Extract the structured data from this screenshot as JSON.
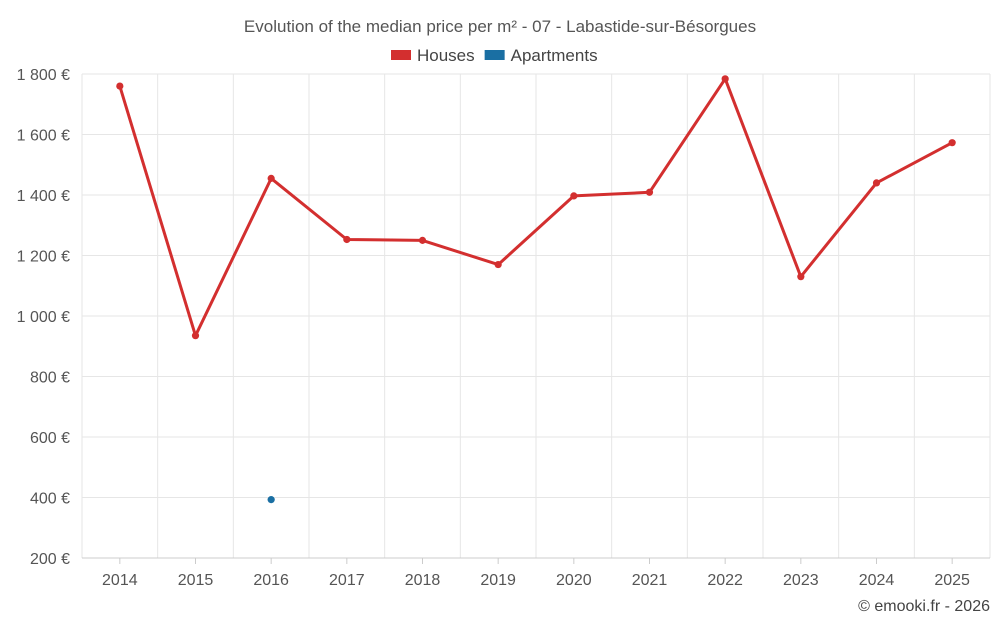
{
  "chart_data": {
    "type": "line",
    "title": "Evolution of the median price per m² - 07 - Labastide-sur-Bésorgues",
    "xlabel": "",
    "ylabel": "",
    "categories": [
      "2014",
      "2015",
      "2016",
      "2017",
      "2018",
      "2019",
      "2020",
      "2021",
      "2022",
      "2023",
      "2024",
      "2025"
    ],
    "ylim": [
      200,
      1800
    ],
    "y_ticks": [
      200,
      400,
      600,
      800,
      1000,
      1200,
      1400,
      1600,
      1800
    ],
    "y_tick_labels": [
      "200 €",
      "400 €",
      "600 €",
      "800 €",
      "1 000 €",
      "1 200 €",
      "1 400 €",
      "1 600 €",
      "1 800 €"
    ],
    "grid": true,
    "legend_position": "top-center",
    "series": [
      {
        "name": "Houses",
        "color": "#d32f2f",
        "values": [
          1760,
          935,
          1455,
          1253,
          1250,
          1170,
          1397,
          1409,
          1784,
          1130,
          1440,
          1573
        ]
      },
      {
        "name": "Apartments",
        "color": "#1a6fa3",
        "values": [
          null,
          null,
          393,
          null,
          null,
          null,
          null,
          null,
          null,
          null,
          null,
          null
        ]
      }
    ]
  },
  "credit": "© emooki.fr - 2026"
}
